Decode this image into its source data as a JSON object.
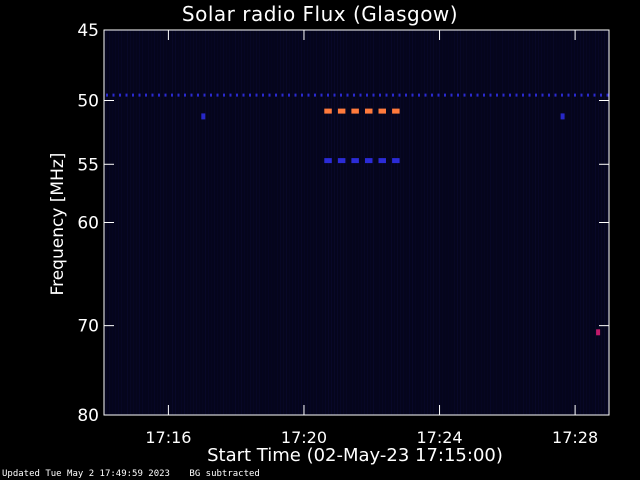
{
  "chart_data": {
    "type": "heatmap",
    "title": "Solar radio Flux (Glasgow)",
    "xlabel": "Start Time (02-May-23 17:15:00)",
    "ylabel": "Frequency [MHz]",
    "x_ticks": [
      "17:16",
      "17:20",
      "17:24",
      "17:28"
    ],
    "x_tick_minutes": [
      1,
      5,
      9,
      13
    ],
    "xlim_minutes": [
      -0.9,
      14.0
    ],
    "y_ticks": [
      45,
      50,
      55,
      60,
      70,
      80
    ],
    "ylim": [
      45,
      80
    ],
    "y_scale": "log",
    "grid": false,
    "colormap": {
      "background": "#05051c",
      "low": "#1d1dd8",
      "high": "#ff7a3c"
    },
    "features": [
      {
        "kind": "interference",
        "freq_mhz": 49.6,
        "start_min": -0.9,
        "end_min": 14.0,
        "color": "#2a2ad0"
      },
      {
        "kind": "burst",
        "freq_mhz": 50.8,
        "start_min": 5.6,
        "end_min": 8.0,
        "color": "#ff7a3c"
      },
      {
        "kind": "burst",
        "freq_mhz": 54.7,
        "start_min": 5.6,
        "end_min": 8.0,
        "color": "#2b2bd6"
      },
      {
        "kind": "spot",
        "freq_mhz": 70.7,
        "start_min": 13.65,
        "end_min": 13.75,
        "color": "#c01a6a"
      },
      {
        "kind": "spot",
        "freq_mhz": 51.2,
        "start_min": 2.0,
        "end_min": 2.1,
        "color": "#2727c8"
      },
      {
        "kind": "spot",
        "freq_mhz": 51.2,
        "start_min": 12.6,
        "end_min": 12.7,
        "color": "#2727c8"
      }
    ]
  },
  "footer": {
    "updated": "Updated Tue May  2 17:49:59 2023",
    "note": "BG subtracted"
  }
}
